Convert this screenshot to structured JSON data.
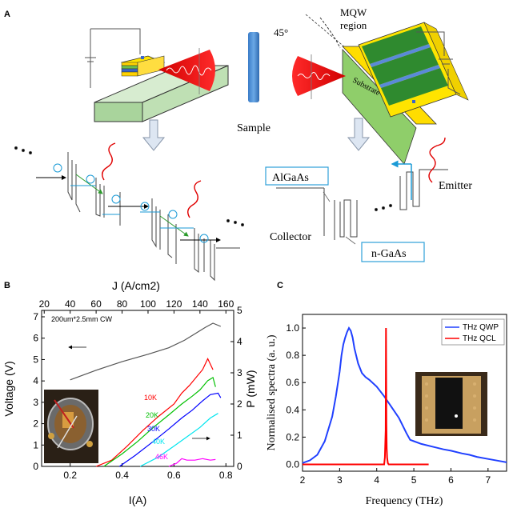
{
  "panels": {
    "a": {
      "letter": "A",
      "sample_label": "Sample",
      "angle_label": "45°",
      "mqw_label_1": "MQW",
      "mqw_label_2": "region",
      "substrate_label": "Substrate",
      "algaas_label": "AlGaAs",
      "ngaas_label": "n-GaAs",
      "emitter_label": "Emitter",
      "collector_label": "Collector"
    },
    "b": {
      "letter": "B",
      "top_axis_label": "J (A/cm2)",
      "left_axis_label": "Voltage (V)",
      "right_axis_label": "P (mW)",
      "bottom_axis_label": "I(A)",
      "device_label": "200um*2.5mm  CW",
      "temps": [
        "10K",
        "20K",
        "30K",
        "40K",
        "46K"
      ]
    },
    "c": {
      "letter": "C",
      "y_label": "Normalised spectra (a. u.)",
      "x_label": "Frequency (THz)",
      "legend": [
        "THz QWP",
        "THz QCL"
      ]
    }
  },
  "chart_data": [
    {
      "type": "line",
      "panel": "B",
      "x_label": "I(A)",
      "x_ticks": [
        "0.2",
        "0.4",
        "0.6",
        "0.8"
      ],
      "xlim": [
        0.09,
        0.83
      ],
      "top_x_label": "J (A/cm2)",
      "top_x_ticks": [
        "20",
        "40",
        "60",
        "80",
        "100",
        "120",
        "140",
        "160"
      ],
      "y_left_label": "Voltage (V)",
      "y_left_ticks": [
        "0",
        "1",
        "2",
        "3",
        "4",
        "5",
        "6",
        "7"
      ],
      "ylim_left": [
        0,
        7.3
      ],
      "y_right_label": "P (mW)",
      "y_right_ticks": [
        "0",
        "1",
        "2",
        "3",
        "4",
        "5"
      ],
      "ylim_right": [
        0,
        5
      ],
      "series": [
        {
          "name": "10K",
          "axis": "right",
          "color": "#ff0000",
          "x": [
            0.3,
            0.36,
            0.42,
            0.48,
            0.54,
            0.6,
            0.63,
            0.66,
            0.69,
            0.71,
            0.73,
            0.75
          ],
          "y": [
            0.0,
            0.2,
            0.65,
            1.15,
            1.6,
            2.0,
            2.35,
            2.6,
            2.9,
            3.1,
            3.45,
            3.1
          ]
        },
        {
          "name": "20K",
          "axis": "right",
          "color": "#00c000",
          "x": [
            0.33,
            0.4,
            0.46,
            0.52,
            0.58,
            0.63,
            0.67,
            0.7,
            0.73,
            0.75,
            0.76
          ],
          "y": [
            0.0,
            0.4,
            0.8,
            1.25,
            1.65,
            2.0,
            2.25,
            2.45,
            2.75,
            2.85,
            2.55
          ]
        },
        {
          "name": "30K",
          "axis": "right",
          "color": "#0000ff",
          "x": [
            0.39,
            0.45,
            0.52,
            0.58,
            0.63,
            0.67,
            0.71,
            0.74,
            0.77,
            0.78
          ],
          "y": [
            0.0,
            0.35,
            0.8,
            1.2,
            1.55,
            1.8,
            2.1,
            2.3,
            2.35,
            2.2
          ]
        },
        {
          "name": "40K",
          "axis": "right",
          "color": "#00e5ee",
          "x": [
            0.47,
            0.54,
            0.6,
            0.65,
            0.7,
            0.74,
            0.77
          ],
          "y": [
            0.0,
            0.3,
            0.65,
            0.95,
            1.25,
            1.55,
            1.7
          ]
        },
        {
          "name": "46K",
          "axis": "right",
          "color": "#ff00ff",
          "x": [
            0.58,
            0.61,
            0.63,
            0.65,
            0.68,
            0.71,
            0.74,
            0.76
          ],
          "y": [
            0.0,
            0.1,
            0.25,
            0.2,
            0.2,
            0.25,
            0.2,
            0.22
          ]
        },
        {
          "name": "V-I",
          "axis": "left",
          "color": "#555555",
          "x": [
            0.2,
            0.3,
            0.4,
            0.5,
            0.58,
            0.64,
            0.68,
            0.72,
            0.75,
            0.78
          ],
          "y": [
            4.05,
            4.5,
            4.9,
            5.25,
            5.55,
            5.9,
            6.2,
            6.5,
            6.7,
            6.55
          ]
        }
      ]
    },
    {
      "type": "line",
      "panel": "C",
      "x_label": "Frequency (THz)",
      "x_ticks": [
        "2",
        "3",
        "4",
        "5",
        "6",
        "7"
      ],
      "xlim": [
        2,
        7.5
      ],
      "y_label": "Normalised spectra (a. u.)",
      "y_ticks": [
        "0.0",
        "0.2",
        "0.4",
        "0.6",
        "0.8",
        "1.0"
      ],
      "ylim": [
        -0.05,
        1.1
      ],
      "series": [
        {
          "name": "THz QWP",
          "color": "#2040ff",
          "x": [
            2.0,
            2.2,
            2.4,
            2.6,
            2.8,
            2.9,
            3.0,
            3.05,
            3.1,
            3.15,
            3.2,
            3.25,
            3.3,
            3.35,
            3.4,
            3.5,
            3.6,
            3.7,
            3.8,
            4.0,
            4.2,
            4.4,
            4.6,
            4.8,
            4.9,
            5.0,
            5.2,
            5.5,
            5.8,
            6.0,
            6.3,
            6.5,
            6.7,
            7.0,
            7.3,
            7.5
          ],
          "y": [
            0.01,
            0.03,
            0.07,
            0.17,
            0.35,
            0.5,
            0.68,
            0.8,
            0.88,
            0.93,
            0.97,
            1.0,
            0.98,
            0.93,
            0.85,
            0.74,
            0.67,
            0.64,
            0.62,
            0.57,
            0.5,
            0.42,
            0.34,
            0.23,
            0.18,
            0.17,
            0.15,
            0.13,
            0.11,
            0.1,
            0.08,
            0.07,
            0.055,
            0.04,
            0.025,
            0.015
          ]
        },
        {
          "name": "THz QCL",
          "color": "#ff0000",
          "x": [
            2.0,
            3.0,
            4.0,
            4.2,
            4.22,
            4.24,
            4.25,
            4.26,
            4.27,
            4.28,
            4.3,
            4.32,
            5.0,
            5.4
          ],
          "y": [
            0.0,
            0.0,
            0.0,
            0.0,
            0.05,
            0.25,
            1.0,
            0.3,
            0.12,
            0.05,
            0.01,
            0.0,
            0.0,
            0.0
          ]
        }
      ]
    }
  ]
}
